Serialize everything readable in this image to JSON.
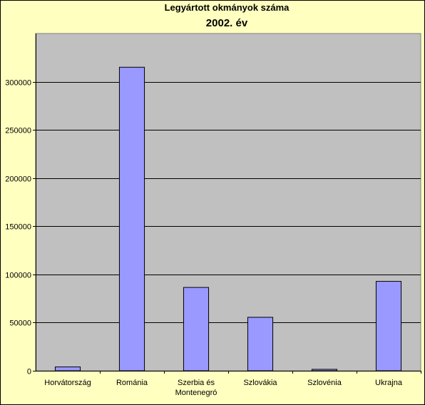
{
  "chart_data": {
    "type": "bar",
    "title": "Legyártott okmányok száma",
    "subtitle": "2002. év",
    "categories": [
      "Horvátország",
      "Románia",
      "Szerbia és Montenegró",
      "Szlovákia",
      "Szlovénia",
      "Ukrajna"
    ],
    "category_lines": [
      [
        "Horvátország"
      ],
      [
        "Románia"
      ],
      [
        "Szerbia és",
        "Montenegró"
      ],
      [
        "Szlovákia"
      ],
      [
        "Szlovénia"
      ],
      [
        "Ukrajna"
      ]
    ],
    "values": [
      4000,
      315000,
      86500,
      55500,
      1500,
      92800
    ],
    "ylim": [
      0,
      350000
    ],
    "yticks": [
      0,
      50000,
      100000,
      150000,
      200000,
      250000,
      300000
    ],
    "ytick_labels": [
      "0",
      "50000",
      "100000",
      "150000",
      "200000",
      "250000",
      "300000"
    ],
    "xlabel": "",
    "ylabel": "",
    "grid": true,
    "legend": "none",
    "colors": {
      "page_background": "#ffffc0",
      "plot_background": "#c0c0c0",
      "bar_fill": "#9999ff",
      "bar_stroke": "#000000",
      "gridline": "#000000"
    }
  }
}
